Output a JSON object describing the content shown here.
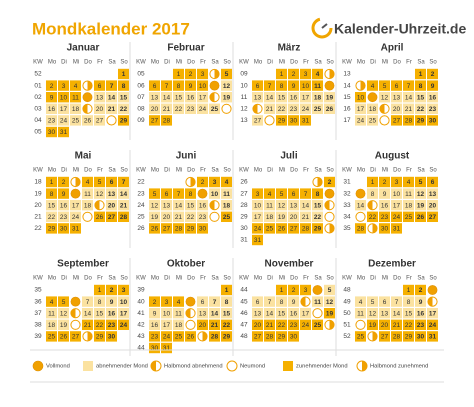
{
  "title": "Mondkalender 2017",
  "logo": "Kalender-Uhrzeit.de",
  "weekdays": [
    "KW",
    "Mo",
    "Di",
    "Mi",
    "Do",
    "Fr",
    "Sa",
    "So"
  ],
  "start_waxing": true,
  "months": [
    {
      "name": "Januar",
      "weeks": [
        {
          "kw": 52,
          "days": [
            null,
            null,
            null,
            null,
            null,
            null,
            1
          ]
        },
        {
          "kw": "01",
          "days": [
            2,
            3,
            4,
            "first",
            6,
            7,
            8
          ]
        },
        {
          "kw": "02",
          "days": [
            9,
            10,
            11,
            "full",
            13,
            14,
            15
          ]
        },
        {
          "kw": "03",
          "days": [
            16,
            17,
            18,
            "last",
            20,
            21,
            22
          ]
        },
        {
          "kw": "04",
          "days": [
            23,
            24,
            25,
            26,
            27,
            "new",
            29
          ]
        },
        {
          "kw": "05",
          "days": [
            30,
            31,
            null,
            null,
            null,
            null,
            null
          ]
        }
      ]
    },
    {
      "name": "Februar",
      "weeks": [
        {
          "kw": "05",
          "days": [
            null,
            null,
            1,
            2,
            3,
            "first",
            5
          ]
        },
        {
          "kw": "06",
          "days": [
            6,
            7,
            8,
            9,
            10,
            "full",
            12
          ]
        },
        {
          "kw": "07",
          "days": [
            13,
            14,
            15,
            16,
            17,
            "last",
            19
          ]
        },
        {
          "kw": "08",
          "days": [
            20,
            21,
            22,
            23,
            24,
            25,
            "new"
          ]
        },
        {
          "kw": "09",
          "days": [
            27,
            28,
            null,
            null,
            null,
            null,
            null
          ]
        }
      ]
    },
    {
      "name": "März",
      "weeks": [
        {
          "kw": "09",
          "days": [
            null,
            null,
            1,
            2,
            3,
            4,
            "first"
          ]
        },
        {
          "kw": 10,
          "days": [
            6,
            7,
            8,
            9,
            10,
            11,
            "full"
          ]
        },
        {
          "kw": 11,
          "days": [
            13,
            14,
            15,
            16,
            17,
            18,
            19
          ]
        },
        {
          "kw": 12,
          "days": [
            "last",
            21,
            22,
            23,
            24,
            25,
            26
          ]
        },
        {
          "kw": 13,
          "days": [
            27,
            "new",
            29,
            30,
            31,
            null,
            null
          ]
        }
      ]
    },
    {
      "name": "April",
      "weeks": [
        {
          "kw": 13,
          "days": [
            null,
            null,
            null,
            null,
            null,
            1,
            2
          ]
        },
        {
          "kw": 14,
          "days": [
            "first",
            4,
            5,
            6,
            7,
            8,
            9
          ]
        },
        {
          "kw": 15,
          "days": [
            10,
            "full",
            12,
            13,
            14,
            15,
            16
          ]
        },
        {
          "kw": 16,
          "days": [
            17,
            18,
            "last",
            20,
            21,
            22,
            23
          ]
        },
        {
          "kw": 17,
          "days": [
            24,
            25,
            "new",
            27,
            28,
            29,
            30
          ]
        }
      ]
    },
    {
      "name": "Mai",
      "weeks": [
        {
          "kw": 18,
          "days": [
            1,
            2,
            "first",
            4,
            5,
            6,
            7
          ]
        },
        {
          "kw": 19,
          "days": [
            8,
            9,
            "full",
            11,
            12,
            13,
            14
          ]
        },
        {
          "kw": 20,
          "days": [
            15,
            16,
            17,
            18,
            "last",
            20,
            21
          ]
        },
        {
          "kw": 21,
          "days": [
            22,
            23,
            24,
            "new",
            26,
            27,
            28
          ]
        },
        {
          "kw": 22,
          "days": [
            29,
            30,
            31,
            null,
            null,
            null,
            null
          ]
        }
      ]
    },
    {
      "name": "Juni",
      "weeks": [
        {
          "kw": 22,
          "days": [
            null,
            null,
            null,
            "first",
            2,
            3,
            4
          ]
        },
        {
          "kw": 23,
          "days": [
            5,
            6,
            7,
            8,
            "full",
            10,
            11
          ]
        },
        {
          "kw": 24,
          "days": [
            12,
            13,
            14,
            15,
            16,
            "last",
            18
          ]
        },
        {
          "kw": 25,
          "days": [
            19,
            20,
            21,
            22,
            23,
            "new",
            25
          ]
        },
        {
          "kw": 26,
          "days": [
            26,
            27,
            28,
            29,
            30,
            null,
            null
          ]
        }
      ]
    },
    {
      "name": "Juli",
      "weeks": [
        {
          "kw": 26,
          "days": [
            null,
            null,
            null,
            null,
            null,
            "first",
            2
          ]
        },
        {
          "kw": 27,
          "days": [
            3,
            4,
            5,
            6,
            7,
            8,
            "full"
          ]
        },
        {
          "kw": 28,
          "days": [
            10,
            11,
            12,
            13,
            14,
            15,
            "last"
          ]
        },
        {
          "kw": 29,
          "days": [
            17,
            18,
            19,
            20,
            21,
            22,
            "new"
          ]
        },
        {
          "kw": 30,
          "days": [
            24,
            25,
            26,
            27,
            28,
            29,
            "first"
          ]
        },
        {
          "kw": 31,
          "days": [
            31,
            null,
            null,
            null,
            null,
            null,
            null
          ]
        }
      ]
    },
    {
      "name": "August",
      "weeks": [
        {
          "kw": 31,
          "days": [
            null,
            1,
            2,
            3,
            4,
            5,
            6
          ]
        },
        {
          "kw": 32,
          "days": [
            "full",
            8,
            9,
            10,
            11,
            12,
            13
          ]
        },
        {
          "kw": 33,
          "days": [
            14,
            "last",
            16,
            17,
            18,
            19,
            20
          ]
        },
        {
          "kw": 34,
          "days": [
            "new",
            22,
            23,
            24,
            25,
            26,
            27
          ]
        },
        {
          "kw": 35,
          "days": [
            28,
            "first",
            30,
            31,
            null,
            null,
            null
          ]
        }
      ]
    },
    {
      "name": "September",
      "weeks": [
        {
          "kw": 35,
          "days": [
            null,
            null,
            null,
            null,
            1,
            2,
            3
          ]
        },
        {
          "kw": 36,
          "days": [
            4,
            5,
            "full",
            7,
            8,
            9,
            10
          ]
        },
        {
          "kw": 37,
          "days": [
            11,
            12,
            "last",
            14,
            15,
            16,
            17
          ]
        },
        {
          "kw": 38,
          "days": [
            18,
            19,
            "new",
            21,
            22,
            23,
            24
          ]
        },
        {
          "kw": 39,
          "days": [
            25,
            26,
            27,
            "first",
            29,
            30,
            null
          ]
        }
      ]
    },
    {
      "name": "Oktober",
      "weeks": [
        {
          "kw": 39,
          "days": [
            null,
            null,
            null,
            null,
            null,
            null,
            1
          ]
        },
        {
          "kw": 40,
          "days": [
            2,
            3,
            4,
            "full",
            6,
            7,
            8
          ]
        },
        {
          "kw": 41,
          "days": [
            9,
            10,
            11,
            "last",
            13,
            14,
            15
          ]
        },
        {
          "kw": 42,
          "days": [
            16,
            17,
            18,
            "new",
            20,
            21,
            22
          ]
        },
        {
          "kw": 43,
          "days": [
            23,
            24,
            25,
            26,
            "first",
            28,
            29
          ]
        },
        {
          "kw": 44,
          "days": [
            30,
            31,
            null,
            null,
            null,
            null,
            null
          ]
        }
      ]
    },
    {
      "name": "November",
      "weeks": [
        {
          "kw": 44,
          "days": [
            null,
            null,
            1,
            2,
            3,
            "full",
            5
          ]
        },
        {
          "kw": 45,
          "days": [
            6,
            7,
            8,
            9,
            "last",
            11,
            12
          ]
        },
        {
          "kw": 46,
          "days": [
            13,
            14,
            15,
            16,
            17,
            "new",
            19
          ]
        },
        {
          "kw": 47,
          "days": [
            20,
            21,
            22,
            23,
            24,
            25,
            "first"
          ]
        },
        {
          "kw": 48,
          "days": [
            27,
            28,
            29,
            30,
            null,
            null,
            null
          ]
        }
      ]
    },
    {
      "name": "Dezember",
      "weeks": [
        {
          "kw": 48,
          "days": [
            null,
            null,
            null,
            null,
            1,
            2,
            "full"
          ]
        },
        {
          "kw": 49,
          "days": [
            4,
            5,
            6,
            7,
            8,
            9,
            "last"
          ]
        },
        {
          "kw": 50,
          "days": [
            11,
            12,
            13,
            14,
            15,
            16,
            17
          ]
        },
        {
          "kw": 51,
          "days": [
            "new",
            19,
            20,
            21,
            22,
            23,
            24
          ]
        },
        {
          "kw": 52,
          "days": [
            25,
            "first",
            27,
            28,
            29,
            30,
            31
          ]
        }
      ]
    }
  ],
  "legend": [
    {
      "symbol": "full",
      "label": "Vollmond"
    },
    {
      "symbol": "waning",
      "label": "abnehmender Mond"
    },
    {
      "symbol": "last",
      "label": "Halbmond abnehmend"
    },
    {
      "symbol": "new",
      "label": "Neumond"
    },
    {
      "symbol": "waxing",
      "label": "zunehmender Mond"
    },
    {
      "symbol": "first",
      "label": "Halbmond zunehmend"
    }
  ]
}
